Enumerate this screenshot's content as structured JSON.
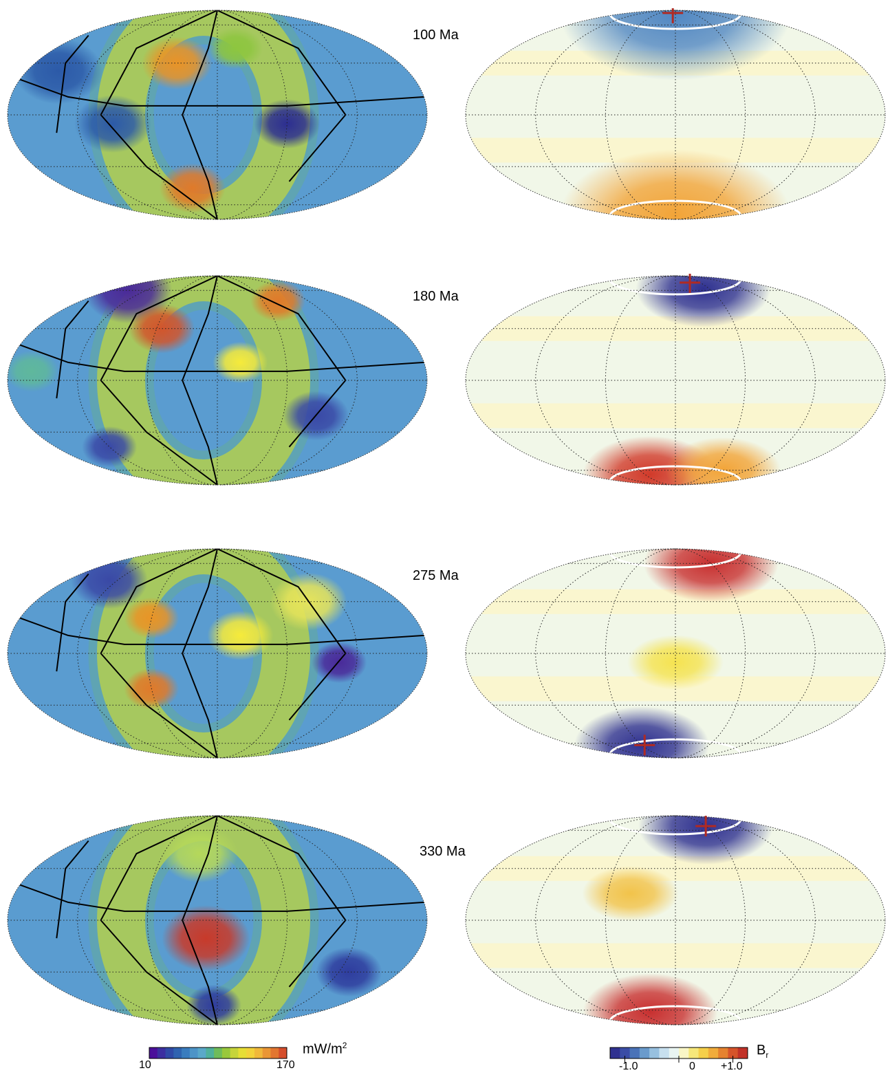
{
  "panels": [
    {
      "age": "100 Ma",
      "heat_blobs": [
        [
          -150,
          25,
          "#2c5aa8",
          40
        ],
        [
          -90,
          -5,
          "#2c5aa8",
          35
        ],
        [
          -40,
          30,
          "#e99426",
          32
        ],
        [
          -30,
          -45,
          "#e07a2a",
          30
        ],
        [
          60,
          -5,
          "#2c2e91",
          30
        ],
        [
          20,
          40,
          "#8dc63f",
          25
        ]
      ],
      "field_blobs": [
        [
          0,
          75,
          "#5187c2",
          120
        ],
        [
          0,
          -75,
          "#f2a438",
          120
        ]
      ],
      "cross": [
        -10,
        78
      ]
    },
    {
      "age": "180 Ma",
      "heat_blobs": [
        [
          -150,
          60,
          "#4a2a99",
          40
        ],
        [
          -160,
          5,
          "#5fb89c",
          25
        ],
        [
          -120,
          -40,
          "#3a49a6",
          25
        ],
        [
          -55,
          30,
          "#d2552c",
          30
        ],
        [
          20,
          10,
          "#f6eb3a",
          25
        ],
        [
          90,
          -20,
          "#3a49a6",
          30
        ],
        [
          80,
          50,
          "#e07a2a",
          25
        ]
      ],
      "field_blobs": [
        [
          50,
          62,
          "#2f3190",
          70
        ],
        [
          -50,
          -65,
          "#d13a2a",
          70
        ],
        [
          80,
          -60,
          "#f2a438",
          60
        ]
      ],
      "cross": [
        35,
        70
      ]
    },
    {
      "age": "275 Ma",
      "heat_blobs": [
        [
          -130,
          45,
          "#3a49a6",
          35
        ],
        [
          -60,
          -20,
          "#e07a2a",
          25
        ],
        [
          -60,
          20,
          "#e99426",
          25
        ],
        [
          20,
          10,
          "#f6eb3a",
          30
        ],
        [
          90,
          30,
          "#e6e45a",
          35
        ],
        [
          105,
          -5,
          "#4a2a99",
          25
        ]
      ],
      "field_blobs": [
        [
          60,
          60,
          "#c83030",
          70
        ],
        [
          -60,
          -62,
          "#2f3190",
          70
        ],
        [
          0,
          -5,
          "#f5e350",
          50
        ]
      ],
      "cross": [
        -55,
        -62
      ]
    },
    {
      "age": "330 Ma",
      "heat_blobs": [
        [
          -10,
          -10,
          "#c83a2a",
          40
        ],
        [
          -20,
          40,
          "#b5d85a",
          35
        ],
        [
          -5,
          -55,
          "#2f3d9e",
          25
        ],
        [
          130,
          -30,
          "#2f3d9e",
          30
        ]
      ],
      "field_blobs": [
        [
          60,
          65,
          "#2f3190",
          70
        ],
        [
          -45,
          -62,
          "#c83030",
          70
        ],
        [
          -40,
          15,
          "#f2c34a",
          50
        ]
      ],
      "cross": [
        60,
        65
      ]
    }
  ],
  "heat_colorbar": {
    "colors": [
      "#4b0f9a",
      "#3b2fa0",
      "#2f4aa6",
      "#2f63b0",
      "#3a7cbe",
      "#4d94c7",
      "#5aa8c9",
      "#4fb09b",
      "#6fbc5a",
      "#99c83c",
      "#c6d43a",
      "#e6de35",
      "#f2d23a",
      "#f0b83a",
      "#ea9634",
      "#e27630",
      "#d54e2c"
    ],
    "min_label": "10",
    "max_label": "170",
    "unit_text": "mW/m",
    "unit_sup": "2"
  },
  "field_colorbar": {
    "colors": [
      "#2f3190",
      "#3a4da6",
      "#4a73b8",
      "#6a9bcc",
      "#97c0df",
      "#c7e0ef",
      "#e9f5f2",
      "#f9f6c6",
      "#f6e77a",
      "#f5cf4a",
      "#f1ac3b",
      "#e5822f",
      "#d6542a",
      "#c13228"
    ],
    "labels": [
      "-1.0",
      "0",
      "+1.0"
    ],
    "unit_text": "B",
    "unit_sub": "r"
  },
  "colors": {
    "heat_base": "#5a9cd0",
    "field_base": "#f1f7e8",
    "field_band": "#faf6cf",
    "cross": "#b02a22",
    "ring": "#ffffff",
    "plates": "#000000"
  }
}
